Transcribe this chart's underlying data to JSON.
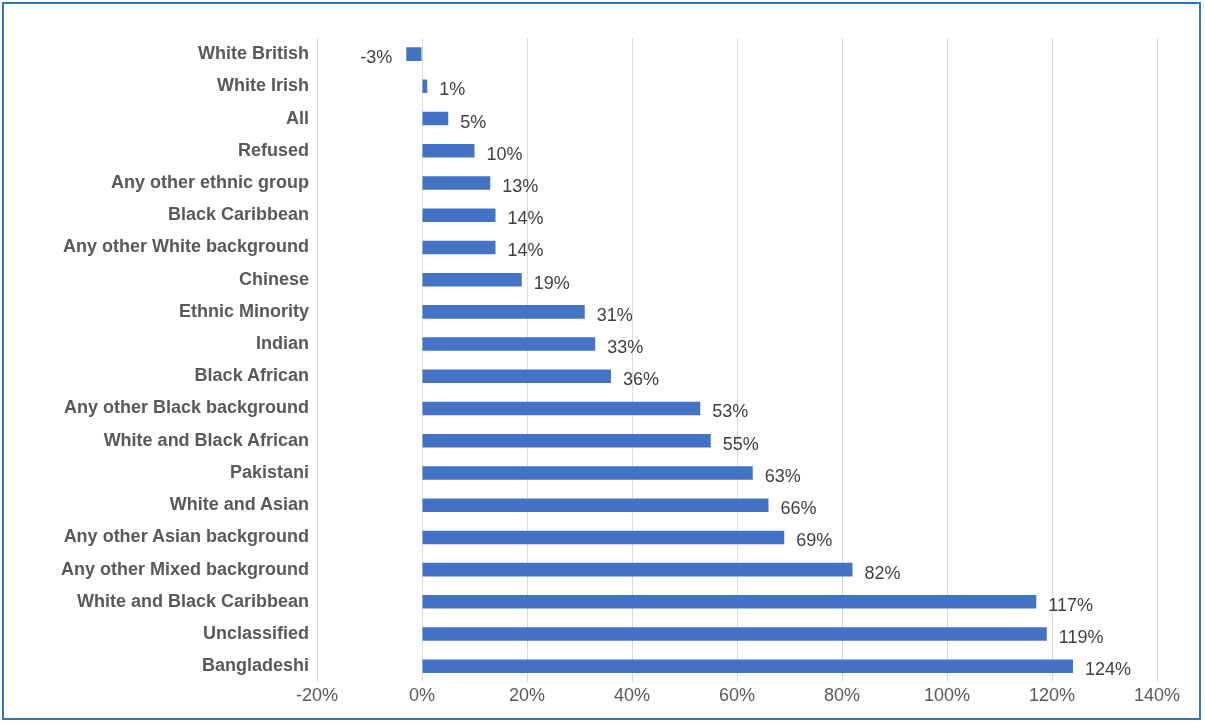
{
  "chart_data": {
    "type": "bar",
    "orientation": "horizontal",
    "categories": [
      "White British",
      "White Irish",
      "All",
      "Refused",
      "Any other ethnic group",
      "Black Caribbean",
      "Any other White background",
      "Chinese",
      "Ethnic Minority",
      "Indian",
      "Black African",
      "Any other Black background",
      "White and Black African",
      "Pakistani",
      "White and Asian",
      "Any other Asian background",
      "Any other Mixed background",
      "White and Black Caribbean",
      "Unclassified",
      "Bangladeshi"
    ],
    "values": [
      -3,
      1,
      5,
      10,
      13,
      14,
      14,
      19,
      31,
      33,
      36,
      53,
      55,
      63,
      66,
      69,
      82,
      117,
      119,
      124
    ],
    "value_labels": [
      "-3%",
      "1%",
      "5%",
      "10%",
      "13%",
      "14%",
      "14%",
      "19%",
      "31%",
      "33%",
      "36%",
      "53%",
      "55%",
      "63%",
      "66%",
      "69%",
      "82%",
      "117%",
      "119%",
      "124%"
    ],
    "color": "#4472c4",
    "xlim": [
      -20,
      140
    ],
    "xticks": [
      {
        "value": -20,
        "label": "-20%"
      },
      {
        "value": 0,
        "label": "0%"
      },
      {
        "value": 20,
        "label": "20%"
      },
      {
        "value": 40,
        "label": "40%"
      },
      {
        "value": 60,
        "label": "60%"
      },
      {
        "value": 80,
        "label": "80%"
      },
      {
        "value": 100,
        "label": "100%"
      },
      {
        "value": 120,
        "label": "120%"
      },
      {
        "value": 140,
        "label": "140%"
      }
    ],
    "grid": "x",
    "legend": false
  }
}
